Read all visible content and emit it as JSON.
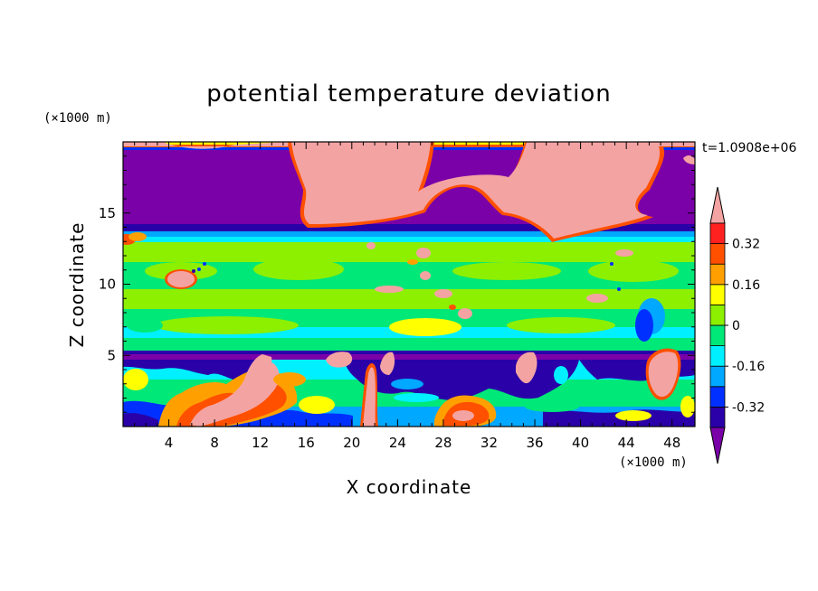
{
  "chart_data": {
    "type": "heatmap",
    "title": "potential temperature deviation",
    "xlabel": "X coordinate",
    "ylabel": "Z coordinate",
    "x_unit": "(×1000 m)",
    "y_unit": "(×1000 m)",
    "time_label": "t=1.0908e+06",
    "xlim": [
      0,
      50
    ],
    "ylim": [
      0,
      20
    ],
    "x_ticks": [
      "4",
      "8",
      "12",
      "16",
      "20",
      "24",
      "28",
      "32",
      "36",
      "40",
      "44",
      "48"
    ],
    "x_tick_values": [
      4,
      8,
      12,
      16,
      20,
      24,
      28,
      32,
      36,
      40,
      44,
      48
    ],
    "y_ticks": [
      "5",
      "10",
      "15"
    ],
    "y_tick_values": [
      5,
      10,
      15
    ],
    "colorbar": {
      "labels": [
        "0.32",
        "0.16",
        "0",
        "-0.16",
        "-0.32"
      ],
      "label_values": [
        0.32,
        0.16,
        0,
        -0.16,
        -0.32
      ],
      "levels": [
        -0.4,
        -0.32,
        -0.24,
        -0.16,
        -0.08,
        0,
        0.08,
        0.16,
        0.24,
        0.32,
        0.4
      ],
      "colors": [
        "#7a00a8",
        "#2a00a8",
        "#0030ff",
        "#00a8ff",
        "#00f0ff",
        "#00e878",
        "#8cf000",
        "#ffff00",
        "#ffa000",
        "#ff5000",
        "#ff2020",
        "#f4a3a3"
      ]
    },
    "regions": [
      {
        "name": "upper-purple",
        "z": [
          13.5,
          20
        ],
        "value": -0.4
      },
      {
        "name": "stratosphere-pink-plume",
        "x": [
          15,
          47
        ],
        "z": [
          13,
          20
        ],
        "value": 0.4
      },
      {
        "name": "tropopause-band",
        "z": [
          13,
          14
        ],
        "value": -0.32
      },
      {
        "name": "mid-green-band",
        "z": [
          5.5,
          13
        ],
        "value": 0.04
      },
      {
        "name": "lower-purple-band",
        "z": [
          4.5,
          5.5
        ],
        "value": -0.4
      },
      {
        "name": "boundary-layer",
        "z": [
          0,
          4.5
        ],
        "value": 0.1
      }
    ]
  }
}
